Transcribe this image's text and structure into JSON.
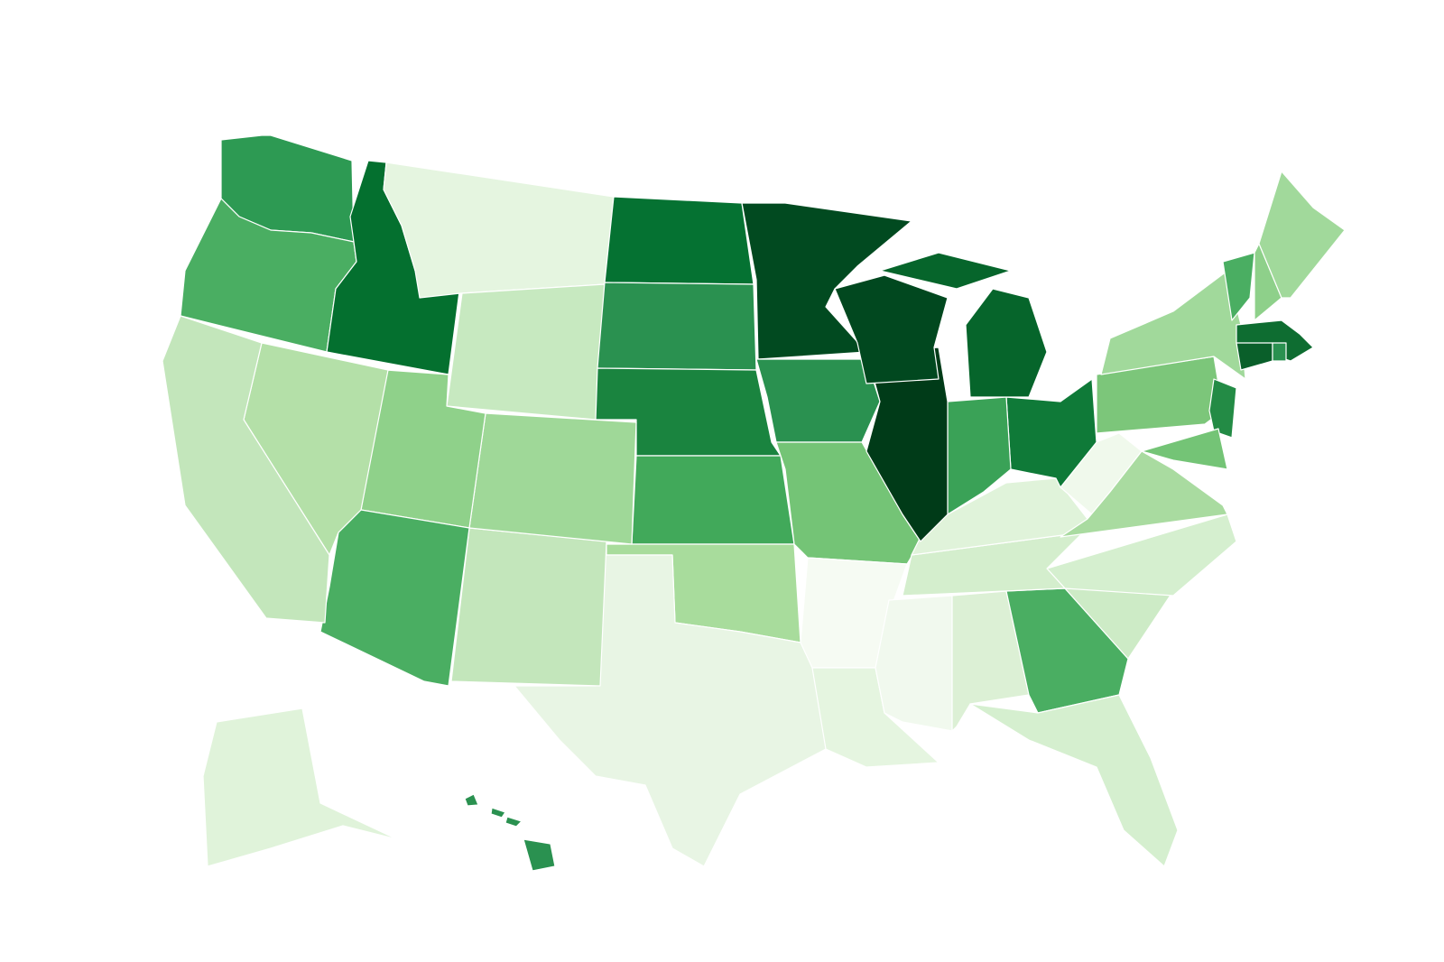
{
  "map": {
    "regions": [
      {
        "color": "#2d9a53"
      },
      {
        "color": "#4aae62"
      },
      {
        "color": "#04702f"
      },
      {
        "color": "#e5f5e0"
      },
      {
        "color": "#c7e9c0"
      },
      {
        "color": "#057232"
      },
      {
        "color": "#2a9150"
      },
      {
        "color": "#1a843f"
      },
      {
        "color": "#41a95a"
      },
      {
        "color": "#a8dc9c"
      },
      {
        "color": "#e8f5e4"
      },
      {
        "color": "#c3e6bb"
      },
      {
        "color": "#9fd898"
      },
      {
        "color": "#8fd18a"
      },
      {
        "color": "#4aae62"
      },
      {
        "color": "#b4e0a8"
      },
      {
        "color": "#c3e6bb"
      },
      {
        "color": "#014a20"
      },
      {
        "color": "#2a9150"
      },
      {
        "color": "#74c476"
      },
      {
        "color": "#f6fbf3"
      },
      {
        "color": "#e5f5e0"
      },
      {
        "color": "#f1f9ee"
      },
      {
        "color": "#dcf0d5"
      },
      {
        "color": "#4aae62"
      },
      {
        "color": "#d5efcf"
      },
      {
        "color": "#cdebc6"
      },
      {
        "color": "#d5efcf"
      },
      {
        "color": "#d4eecd"
      },
      {
        "color": "#e0f3da"
      },
      {
        "color": "#f0f9ec"
      },
      {
        "color": "#a9dba0"
      },
      {
        "color": "#0f7a38"
      },
      {
        "color": "#3aa257"
      },
      {
        "color": "#003b18"
      },
      {
        "color": "#01481f"
      },
      {
        "color": "#06652b"
      },
      {
        "color": "#7cc67a"
      },
      {
        "color": "#a1d99b"
      },
      {
        "color": "#238b45"
      },
      {
        "color": "#74c476"
      },
      {
        "color": "#4aae62"
      },
      {
        "color": "#8ed08a"
      },
      {
        "color": "#a1d99b"
      },
      {
        "color": "#0e6d31"
      },
      {
        "color": "#0a5f2a"
      },
      {
        "color": "#2a9150"
      },
      {
        "color": "#e0f3da"
      },
      {
        "color": "#2a9150"
      }
    ]
  }
}
